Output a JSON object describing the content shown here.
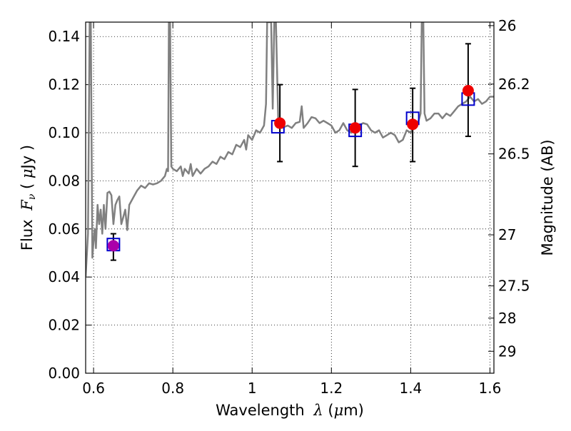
{
  "chart_data": {
    "type": "scatter",
    "xlabel_prefix": "Wavelength ",
    "xlabel_symbol": "λ",
    "xlabel_unit_open": " (",
    "xlabel_unit_mu": "μ",
    "xlabel_unit_close": "m)",
    "ylabel_prefix": "Flux ",
    "ylabel_symbol": "F",
    "ylabel_sub": "ν",
    "ylabel_unit_open": " ( ",
    "ylabel_unit_mu": "μ",
    "ylabel_unit_close": "Jy )",
    "y2label": "Magnitude (AB)",
    "xlim": [
      0.58,
      1.61
    ],
    "ylim": [
      0.0,
      0.146
    ],
    "grid": true,
    "x_ticks": [
      {
        "value": 0.6,
        "label": "0.6"
      },
      {
        "value": 0.8,
        "label": "0.8"
      },
      {
        "value": 1.0,
        "label": "1"
      },
      {
        "value": 1.2,
        "label": "1.2"
      },
      {
        "value": 1.4,
        "label": "1.4"
      },
      {
        "value": 1.6,
        "label": "1.6"
      }
    ],
    "y_ticks": [
      {
        "value": 0.0,
        "label": "0.00"
      },
      {
        "value": 0.02,
        "label": "0.02"
      },
      {
        "value": 0.04,
        "label": "0.04"
      },
      {
        "value": 0.06,
        "label": "0.06"
      },
      {
        "value": 0.08,
        "label": "0.08"
      },
      {
        "value": 0.1,
        "label": "0.10"
      },
      {
        "value": 0.12,
        "label": "0.12"
      },
      {
        "value": 0.14,
        "label": "0.14"
      }
    ],
    "y2_ticks": [
      {
        "mag": 26,
        "label": "26"
      },
      {
        "mag": 26.2,
        "label": "26.2"
      },
      {
        "mag": 26.5,
        "label": "26.5"
      },
      {
        "mag": 27,
        "label": "27"
      },
      {
        "mag": 27.5,
        "label": "27.5"
      },
      {
        "mag": 28,
        "label": "28"
      },
      {
        "mag": 29,
        "label": "29"
      }
    ],
    "colors": {
      "sed": "#808080",
      "model_box": "#0000cc",
      "observed": "#ee0000",
      "observed_first": "#aa00aa",
      "errorbar": "#000000"
    },
    "observed_points": [
      {
        "x": 0.65,
        "y": 0.053,
        "err_low": 0.047,
        "err_high": 0.058
      },
      {
        "x": 1.07,
        "y": 0.104,
        "err_low": 0.088,
        "err_high": 0.12
      },
      {
        "x": 1.26,
        "y": 0.102,
        "err_low": 0.086,
        "err_high": 0.118
      },
      {
        "x": 1.405,
        "y": 0.1035,
        "err_low": 0.088,
        "err_high": 0.1185
      },
      {
        "x": 1.545,
        "y": 0.1175,
        "err_low": 0.0985,
        "err_high": 0.137
      }
    ],
    "model_points": [
      {
        "x": 0.65,
        "y": 0.0535
      },
      {
        "x": 1.065,
        "y": 0.1025
      },
      {
        "x": 1.26,
        "y": 0.101
      },
      {
        "x": 1.405,
        "y": 0.106
      },
      {
        "x": 1.545,
        "y": 0.114
      }
    ],
    "sed_curve": [
      [
        0.58,
        0.04
      ],
      [
        0.586,
        0.058
      ],
      [
        0.59,
        0.146
      ],
      [
        0.593,
        0.146
      ],
      [
        0.597,
        0.048
      ],
      [
        0.6,
        0.055
      ],
      [
        0.603,
        0.06
      ],
      [
        0.606,
        0.052
      ],
      [
        0.61,
        0.07
      ],
      [
        0.614,
        0.062
      ],
      [
        0.618,
        0.068
      ],
      [
        0.622,
        0.058
      ],
      [
        0.626,
        0.07
      ],
      [
        0.63,
        0.06
      ],
      [
        0.635,
        0.075
      ],
      [
        0.64,
        0.0755
      ],
      [
        0.645,
        0.074
      ],
      [
        0.65,
        0.062
      ],
      [
        0.655,
        0.07
      ],
      [
        0.66,
        0.072
      ],
      [
        0.665,
        0.0735
      ],
      [
        0.67,
        0.062
      ],
      [
        0.675,
        0.065
      ],
      [
        0.68,
        0.068
      ],
      [
        0.685,
        0.0595
      ],
      [
        0.69,
        0.07
      ],
      [
        0.7,
        0.073
      ],
      [
        0.71,
        0.076
      ],
      [
        0.72,
        0.078
      ],
      [
        0.73,
        0.077
      ],
      [
        0.74,
        0.079
      ],
      [
        0.75,
        0.0785
      ],
      [
        0.76,
        0.079
      ],
      [
        0.77,
        0.08
      ],
      [
        0.78,
        0.082
      ],
      [
        0.785,
        0.085
      ],
      [
        0.788,
        0.084
      ],
      [
        0.79,
        0.146
      ],
      [
        0.793,
        0.146
      ],
      [
        0.796,
        0.086
      ],
      [
        0.8,
        0.085
      ],
      [
        0.81,
        0.084
      ],
      [
        0.82,
        0.086
      ],
      [
        0.825,
        0.082
      ],
      [
        0.83,
        0.085
      ],
      [
        0.84,
        0.083
      ],
      [
        0.845,
        0.087
      ],
      [
        0.85,
        0.082
      ],
      [
        0.86,
        0.085
      ],
      [
        0.87,
        0.083
      ],
      [
        0.88,
        0.085
      ],
      [
        0.89,
        0.086
      ],
      [
        0.9,
        0.088
      ],
      [
        0.91,
        0.087
      ],
      [
        0.92,
        0.09
      ],
      [
        0.93,
        0.089
      ],
      [
        0.94,
        0.092
      ],
      [
        0.95,
        0.091
      ],
      [
        0.96,
        0.095
      ],
      [
        0.97,
        0.094
      ],
      [
        0.98,
        0.097
      ],
      [
        0.985,
        0.093
      ],
      [
        0.99,
        0.099
      ],
      [
        1.0,
        0.097
      ],
      [
        1.01,
        0.101
      ],
      [
        1.02,
        0.1
      ],
      [
        1.03,
        0.103
      ],
      [
        1.035,
        0.112
      ],
      [
        1.038,
        0.146
      ],
      [
        1.048,
        0.146
      ],
      [
        1.052,
        0.11
      ],
      [
        1.056,
        0.146
      ],
      [
        1.06,
        0.146
      ],
      [
        1.066,
        0.104
      ],
      [
        1.075,
        0.102
      ],
      [
        1.09,
        0.103
      ],
      [
        1.1,
        0.102
      ],
      [
        1.11,
        0.104
      ],
      [
        1.12,
        0.1045
      ],
      [
        1.125,
        0.111
      ],
      [
        1.13,
        0.102
      ],
      [
        1.14,
        0.104
      ],
      [
        1.15,
        0.1065
      ],
      [
        1.16,
        0.106
      ],
      [
        1.17,
        0.104
      ],
      [
        1.18,
        0.105
      ],
      [
        1.19,
        0.104
      ],
      [
        1.2,
        0.103
      ],
      [
        1.21,
        0.1
      ],
      [
        1.22,
        0.101
      ],
      [
        1.23,
        0.104
      ],
      [
        1.24,
        0.101
      ],
      [
        1.25,
        0.1
      ],
      [
        1.26,
        0.101
      ],
      [
        1.27,
        0.103
      ],
      [
        1.28,
        0.104
      ],
      [
        1.29,
        0.1035
      ],
      [
        1.3,
        0.101
      ],
      [
        1.31,
        0.1
      ],
      [
        1.32,
        0.101
      ],
      [
        1.33,
        0.098
      ],
      [
        1.34,
        0.099
      ],
      [
        1.35,
        0.1
      ],
      [
        1.36,
        0.099
      ],
      [
        1.37,
        0.096
      ],
      [
        1.38,
        0.097
      ],
      [
        1.39,
        0.101
      ],
      [
        1.4,
        0.1
      ],
      [
        1.41,
        0.103
      ],
      [
        1.42,
        0.105
      ],
      [
        1.425,
        0.108
      ],
      [
        1.428,
        0.146
      ],
      [
        1.432,
        0.146
      ],
      [
        1.435,
        0.108
      ],
      [
        1.44,
        0.105
      ],
      [
        1.45,
        0.106
      ],
      [
        1.46,
        0.108
      ],
      [
        1.47,
        0.108
      ],
      [
        1.48,
        0.106
      ],
      [
        1.49,
        0.108
      ],
      [
        1.5,
        0.107
      ],
      [
        1.51,
        0.109
      ],
      [
        1.52,
        0.111
      ],
      [
        1.53,
        0.112
      ],
      [
        1.54,
        0.113
      ],
      [
        1.55,
        0.115
      ],
      [
        1.56,
        0.113
      ],
      [
        1.57,
        0.114
      ],
      [
        1.58,
        0.112
      ],
      [
        1.59,
        0.113
      ],
      [
        1.6,
        0.115
      ],
      [
        1.61,
        0.115
      ]
    ]
  }
}
